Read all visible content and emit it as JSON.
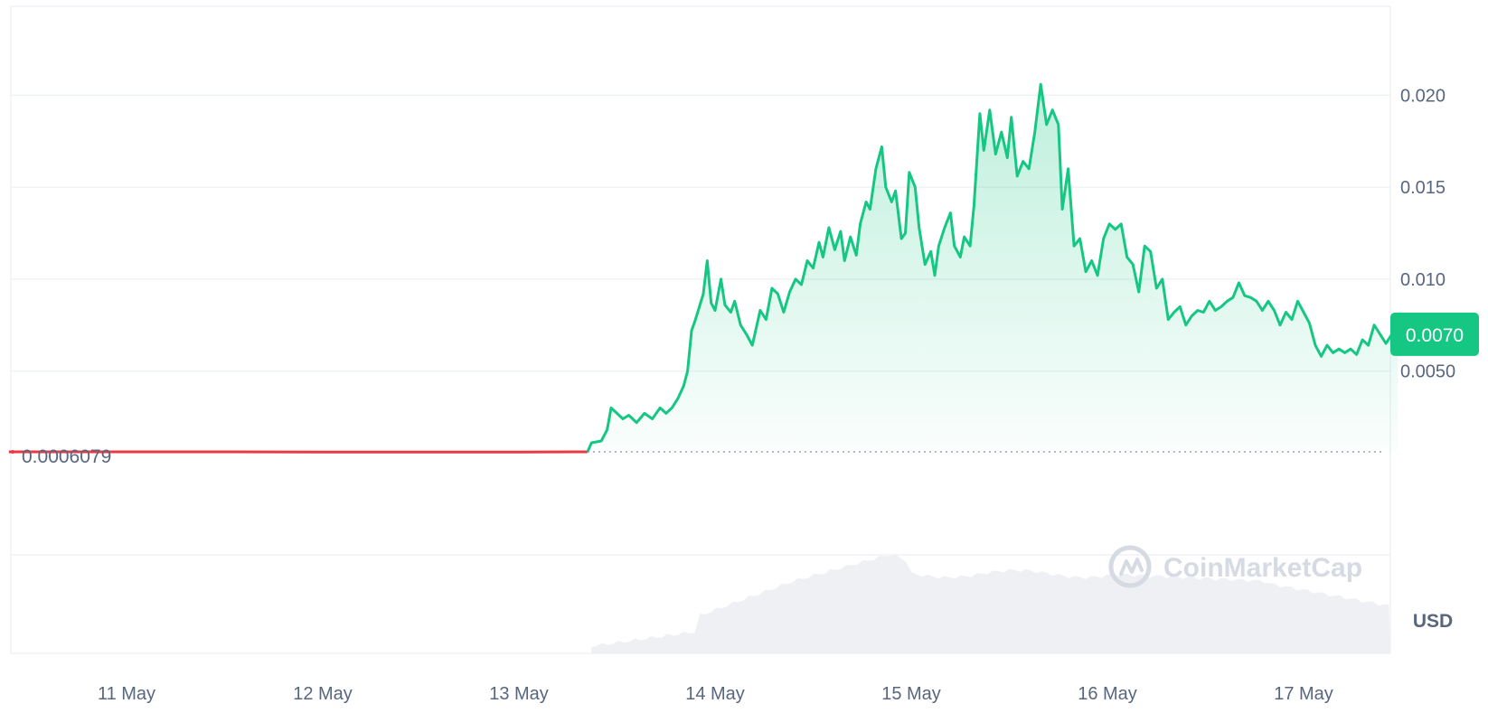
{
  "chart_data": {
    "type": "area",
    "currency_label": "USD",
    "watermark": "CoinMarketCap",
    "x_labels": [
      "11 May",
      "12 May",
      "13 May",
      "14 May",
      "15 May",
      "16 May",
      "17 May"
    ],
    "y_ticks": [
      "0.0050",
      "0.010",
      "0.015",
      "0.020"
    ],
    "y_tick_values": [
      0.005,
      0.01,
      0.015,
      0.02
    ],
    "open_price": 0.0006079,
    "open_price_label": "0.0006079",
    "current_price": 0.007,
    "current_price_label": "0.0070",
    "colors": {
      "up": "#16c784",
      "down": "#ea3943",
      "volume": "#eef0f4",
      "grid": "#eff2f5",
      "text": "#58667e"
    },
    "series": [
      {
        "values": [
          [
            10.4,
            0.00061
          ],
          [
            11.0,
            0.00061
          ],
          [
            11.5,
            0.00061
          ],
          [
            12.0,
            0.0006
          ],
          [
            12.5,
            0.0006
          ],
          [
            13.0,
            0.0006
          ],
          [
            13.35,
            0.00061
          ],
          [
            13.37,
            0.0011
          ],
          [
            13.42,
            0.0012
          ],
          [
            13.45,
            0.0018
          ],
          [
            13.47,
            0.003
          ],
          [
            13.5,
            0.0027
          ],
          [
            13.53,
            0.0024
          ],
          [
            13.56,
            0.0026
          ],
          [
            13.6,
            0.0022
          ],
          [
            13.64,
            0.0027
          ],
          [
            13.68,
            0.0024
          ],
          [
            13.72,
            0.003
          ],
          [
            13.75,
            0.0027
          ],
          [
            13.78,
            0.003
          ],
          [
            13.81,
            0.0035
          ],
          [
            13.84,
            0.0042
          ],
          [
            13.86,
            0.005
          ],
          [
            13.88,
            0.0072
          ],
          [
            13.9,
            0.0078
          ],
          [
            13.94,
            0.0092
          ],
          [
            13.96,
            0.011
          ],
          [
            13.98,
            0.0087
          ],
          [
            14.0,
            0.0083
          ],
          [
            14.03,
            0.01
          ],
          [
            14.05,
            0.0086
          ],
          [
            14.08,
            0.0082
          ],
          [
            14.1,
            0.0088
          ],
          [
            14.13,
            0.0075
          ],
          [
            14.16,
            0.007
          ],
          [
            14.19,
            0.0064
          ],
          [
            14.23,
            0.0083
          ],
          [
            14.26,
            0.0078
          ],
          [
            14.29,
            0.0095
          ],
          [
            14.32,
            0.0092
          ],
          [
            14.35,
            0.0082
          ],
          [
            14.38,
            0.0093
          ],
          [
            14.41,
            0.01
          ],
          [
            14.44,
            0.0097
          ],
          [
            14.47,
            0.011
          ],
          [
            14.5,
            0.0106
          ],
          [
            14.53,
            0.012
          ],
          [
            14.55,
            0.0112
          ],
          [
            14.58,
            0.0128
          ],
          [
            14.61,
            0.0116
          ],
          [
            14.64,
            0.0126
          ],
          [
            14.66,
            0.011
          ],
          [
            14.69,
            0.0123
          ],
          [
            14.72,
            0.0113
          ],
          [
            14.74,
            0.013
          ],
          [
            14.77,
            0.0142
          ],
          [
            14.79,
            0.0138
          ],
          [
            14.82,
            0.016
          ],
          [
            14.85,
            0.0172
          ],
          [
            14.87,
            0.015
          ],
          [
            14.9,
            0.0142
          ],
          [
            14.92,
            0.0148
          ],
          [
            14.95,
            0.0122
          ],
          [
            14.97,
            0.0125
          ],
          [
            14.99,
            0.0158
          ],
          [
            15.02,
            0.015
          ],
          [
            15.04,
            0.0128
          ],
          [
            15.07,
            0.0108
          ],
          [
            15.1,
            0.0115
          ],
          [
            15.12,
            0.0102
          ],
          [
            15.14,
            0.0118
          ],
          [
            15.17,
            0.0128
          ],
          [
            15.2,
            0.0136
          ],
          [
            15.22,
            0.0118
          ],
          [
            15.25,
            0.0112
          ],
          [
            15.27,
            0.0123
          ],
          [
            15.3,
            0.0118
          ],
          [
            15.32,
            0.014
          ],
          [
            15.35,
            0.019
          ],
          [
            15.37,
            0.017
          ],
          [
            15.4,
            0.0192
          ],
          [
            15.43,
            0.0168
          ],
          [
            15.46,
            0.018
          ],
          [
            15.49,
            0.0166
          ],
          [
            15.51,
            0.0188
          ],
          [
            15.54,
            0.0156
          ],
          [
            15.57,
            0.0164
          ],
          [
            15.6,
            0.016
          ],
          [
            15.63,
            0.018
          ],
          [
            15.66,
            0.0206
          ],
          [
            15.69,
            0.0184
          ],
          [
            15.72,
            0.0192
          ],
          [
            15.75,
            0.0184
          ],
          [
            15.77,
            0.0138
          ],
          [
            15.8,
            0.016
          ],
          [
            15.83,
            0.0118
          ],
          [
            15.86,
            0.0122
          ],
          [
            15.89,
            0.0104
          ],
          [
            15.92,
            0.011
          ],
          [
            15.95,
            0.0102
          ],
          [
            15.98,
            0.0122
          ],
          [
            16.01,
            0.013
          ],
          [
            16.04,
            0.0127
          ],
          [
            16.07,
            0.013
          ],
          [
            16.1,
            0.0112
          ],
          [
            16.13,
            0.0108
          ],
          [
            16.16,
            0.0093
          ],
          [
            16.19,
            0.0118
          ],
          [
            16.22,
            0.0115
          ],
          [
            16.25,
            0.0095
          ],
          [
            16.28,
            0.01
          ],
          [
            16.31,
            0.0078
          ],
          [
            16.34,
            0.0082
          ],
          [
            16.37,
            0.0085
          ],
          [
            16.4,
            0.0075
          ],
          [
            16.43,
            0.008
          ],
          [
            16.46,
            0.0083
          ],
          [
            16.49,
            0.0082
          ],
          [
            16.52,
            0.0088
          ],
          [
            16.55,
            0.0083
          ],
          [
            16.58,
            0.0085
          ],
          [
            16.61,
            0.0088
          ],
          [
            16.64,
            0.009
          ],
          [
            16.67,
            0.0098
          ],
          [
            16.7,
            0.0091
          ],
          [
            16.73,
            0.009
          ],
          [
            16.76,
            0.0088
          ],
          [
            16.79,
            0.0083
          ],
          [
            16.82,
            0.0088
          ],
          [
            16.85,
            0.0083
          ],
          [
            16.88,
            0.0075
          ],
          [
            16.91,
            0.0082
          ],
          [
            16.94,
            0.0078
          ],
          [
            16.97,
            0.0088
          ],
          [
            17.0,
            0.0082
          ],
          [
            17.03,
            0.0076
          ],
          [
            17.06,
            0.0064
          ],
          [
            17.09,
            0.0058
          ],
          [
            17.12,
            0.0064
          ],
          [
            17.15,
            0.006
          ],
          [
            17.18,
            0.0062
          ],
          [
            17.21,
            0.006
          ],
          [
            17.24,
            0.0062
          ],
          [
            17.27,
            0.0059
          ],
          [
            17.3,
            0.0067
          ],
          [
            17.33,
            0.0064
          ],
          [
            17.36,
            0.0075
          ],
          [
            17.39,
            0.007
          ],
          [
            17.42,
            0.0065
          ],
          [
            17.45,
            0.007
          ],
          [
            17.48,
            0.007
          ]
        ]
      }
    ]
  }
}
